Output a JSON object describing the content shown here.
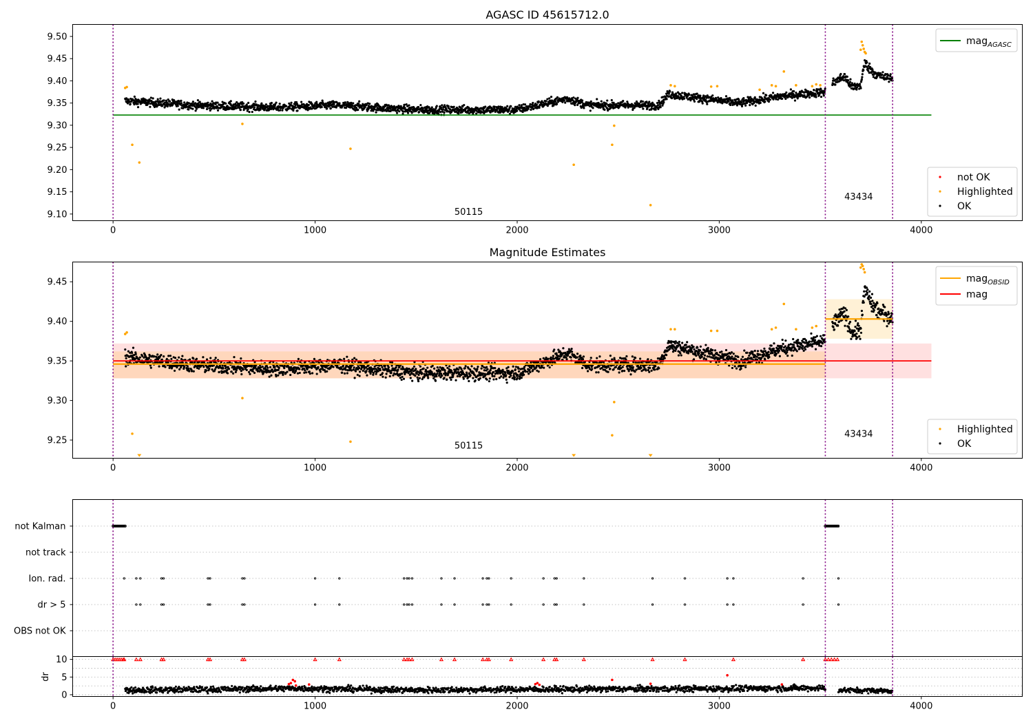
{
  "chart_data": [
    {
      "type": "scatter",
      "title": "AGASC ID 45615712.0",
      "xlim": [
        -200,
        4500
      ],
      "ylim": [
        9.085,
        9.527
      ],
      "xticks": [
        "0",
        "1000",
        "2000",
        "3000",
        "4000"
      ],
      "yticks": [
        "9.10",
        "9.15",
        "9.20",
        "9.25",
        "9.30",
        "9.35",
        "9.40",
        "9.45",
        "9.50"
      ],
      "vlines": [
        0,
        3525,
        3858
      ],
      "obsid_labels": [
        {
          "text": "50115",
          "x": 1760,
          "y": 9.098
        },
        {
          "text": "43434",
          "x": 3690,
          "y": 9.132
        }
      ],
      "mag_agasc": {
        "value": 9.323,
        "x_range": [
          0,
          4050
        ],
        "color": "#008000"
      },
      "legend_upper": [
        {
          "label": "mag",
          "sub": "AGASC",
          "color": "#008000"
        }
      ],
      "legend_lower": [
        {
          "label": "not OK",
          "color": "#ff0000"
        },
        {
          "label": "Highlighted",
          "color": "#ffa500"
        },
        {
          "label": "OK",
          "color": "#000000"
        }
      ],
      "series": [
        {
          "name": "OK",
          "color": "#000000",
          "segments": [
            {
              "x_range": [
                60,
                3525
              ],
              "trend": [
                [
                  60,
                  9.355
                ],
                [
                  400,
                  9.345
                ],
                [
                  800,
                  9.34
                ],
                [
                  1100,
                  9.345
                ],
                [
                  1500,
                  9.335
                ],
                [
                  2000,
                  9.335
                ],
                [
                  2250,
                  9.36
                ],
                [
                  2350,
                  9.345
                ],
                [
                  2700,
                  9.345
                ],
                [
                  2750,
                  9.37
                ],
                [
                  3100,
                  9.35
                ],
                [
                  3300,
                  9.365
                ],
                [
                  3525,
                  9.375
                ]
              ],
              "spread": 0.012
            },
            {
              "x_range": [
                3560,
                3858
              ],
              "trend": [
                [
                  3560,
                  9.395
                ],
                [
                  3620,
                  9.41
                ],
                [
                  3660,
                  9.385
                ],
                [
                  3700,
                  9.39
                ],
                [
                  3720,
                  9.44
                ],
                [
                  3760,
                  9.42
                ],
                [
                  3800,
                  9.41
                ],
                [
                  3858,
                  9.405
                ]
              ],
              "spread": 0.014
            }
          ]
        },
        {
          "name": "Highlighted",
          "color": "#ffa500",
          "points": [
            [
              60,
              9.384
            ],
            [
              68,
              9.386
            ],
            [
              95,
              9.256
            ],
            [
              130,
              9.216
            ],
            [
              640,
              9.303
            ],
            [
              1175,
              9.247
            ],
            [
              2280,
              9.211
            ],
            [
              2470,
              9.256
            ],
            [
              2480,
              9.299
            ],
            [
              2660,
              9.12
            ],
            [
              2760,
              9.39
            ],
            [
              2780,
              9.388
            ],
            [
              2960,
              9.387
            ],
            [
              2990,
              9.388
            ],
            [
              3200,
              9.38
            ],
            [
              3260,
              9.39
            ],
            [
              3280,
              9.388
            ],
            [
              3320,
              9.421
            ],
            [
              3380,
              9.39
            ],
            [
              3460,
              9.388
            ],
            [
              3480,
              9.392
            ],
            [
              3500,
              9.39
            ],
            [
              3700,
              9.47
            ],
            [
              3705,
              9.488
            ],
            [
              3710,
              9.48
            ],
            [
              3715,
              9.472
            ],
            [
              3720,
              9.465
            ],
            [
              3725,
              9.462
            ]
          ]
        }
      ]
    },
    {
      "type": "scatter",
      "title": "Magnitude Estimates",
      "xlim": [
        -200,
        4500
      ],
      "ylim": [
        9.227,
        9.475
      ],
      "xticks": [
        "0",
        "1000",
        "2000",
        "3000",
        "4000"
      ],
      "yticks": [
        "9.25",
        "9.30",
        "9.35",
        "9.40",
        "9.45"
      ],
      "vlines": [
        0,
        3525,
        3858
      ],
      "obsid_labels": [
        {
          "text": "50115",
          "x": 1760,
          "y": 9.239
        },
        {
          "text": "43434",
          "x": 3690,
          "y": 9.254
        }
      ],
      "mag": {
        "value": 9.35,
        "band": [
          9.328,
          9.372
        ],
        "x_range": [
          0,
          4050
        ],
        "color": "#ff0000"
      },
      "mag_obsid": [
        {
          "value": 9.346,
          "band": [
            9.328,
            9.362
          ],
          "x_range": [
            0,
            3525
          ]
        },
        {
          "value": 9.403,
          "band": [
            9.378,
            9.428
          ],
          "x_range": [
            3525,
            3858
          ]
        }
      ],
      "legend_upper": [
        {
          "label": "mag",
          "sub": "OBSID",
          "color": "#ffa500"
        },
        {
          "label": "mag",
          "sub": "",
          "color": "#ff0000"
        }
      ],
      "legend_lower": [
        {
          "label": "Highlighted",
          "color": "#ffa500"
        },
        {
          "label": "OK",
          "color": "#000000"
        }
      ],
      "offscale_markers": [
        130,
        2280,
        2660
      ],
      "series": [
        {
          "name": "OK",
          "color": "#000000",
          "segments": [
            {
              "x_range": [
                60,
                3525
              ],
              "trend": [
                [
                  60,
                  9.355
                ],
                [
                  400,
                  9.345
                ],
                [
                  800,
                  9.34
                ],
                [
                  1100,
                  9.345
                ],
                [
                  1500,
                  9.335
                ],
                [
                  2000,
                  9.335
                ],
                [
                  2250,
                  9.36
                ],
                [
                  2350,
                  9.345
                ],
                [
                  2700,
                  9.345
                ],
                [
                  2750,
                  9.37
                ],
                [
                  3100,
                  9.35
                ],
                [
                  3300,
                  9.365
                ],
                [
                  3525,
                  9.375
                ]
              ],
              "spread": 0.012
            },
            {
              "x_range": [
                3560,
                3858
              ],
              "trend": [
                [
                  3560,
                  9.395
                ],
                [
                  3620,
                  9.41
                ],
                [
                  3660,
                  9.385
                ],
                [
                  3700,
                  9.39
                ],
                [
                  3720,
                  9.44
                ],
                [
                  3760,
                  9.42
                ],
                [
                  3800,
                  9.41
                ],
                [
                  3858,
                  9.405
                ]
              ],
              "spread": 0.014
            }
          ]
        },
        {
          "name": "Highlighted",
          "color": "#ffa500",
          "points": [
            [
              60,
              9.384
            ],
            [
              68,
              9.386
            ],
            [
              95,
              9.258
            ],
            [
              640,
              9.303
            ],
            [
              1175,
              9.248
            ],
            [
              2470,
              9.256
            ],
            [
              2480,
              9.298
            ],
            [
              2760,
              9.39
            ],
            [
              2780,
              9.39
            ],
            [
              2960,
              9.388
            ],
            [
              2990,
              9.388
            ],
            [
              3260,
              9.39
            ],
            [
              3280,
              9.392
            ],
            [
              3320,
              9.422
            ],
            [
              3380,
              9.39
            ],
            [
              3460,
              9.392
            ],
            [
              3480,
              9.394
            ],
            [
              3700,
              9.468
            ],
            [
              3705,
              9.472
            ],
            [
              3710,
              9.47
            ],
            [
              3715,
              9.466
            ],
            [
              3720,
              9.462
            ]
          ]
        }
      ]
    },
    {
      "type": "scatter",
      "title": "",
      "xlim": [
        -200,
        4500
      ],
      "rows": [
        "not Kalman",
        "not track",
        "Ion. rad.",
        "dr > 5",
        "OBS not OK"
      ],
      "not_kalman_ranges": [
        [
          0,
          60
        ],
        [
          3525,
          3590
        ]
      ],
      "event_x": [
        55,
        115,
        135,
        240,
        250,
        470,
        480,
        640,
        650,
        1000,
        1120,
        1440,
        1455,
        1465,
        1480,
        1625,
        1690,
        1830,
        1850,
        1860,
        1970,
        2130,
        2185,
        2195,
        2330,
        2670,
        2830,
        3040,
        3070,
        3415,
        3590
      ],
      "vlines": [
        0,
        3525,
        3858
      ]
    },
    {
      "type": "scatter",
      "title": "",
      "ylabel": "dr",
      "xlim": [
        -200,
        4500
      ],
      "ylim": [
        -0.5,
        10.8
      ],
      "xticks": [
        "0",
        "1000",
        "2000",
        "3000",
        "4000"
      ],
      "yticks": [
        "0",
        "5",
        "10"
      ],
      "capped_value": 10,
      "capped_red_x": [
        0,
        10,
        20,
        30,
        40,
        50,
        55,
        115,
        135,
        240,
        250,
        470,
        480,
        640,
        650,
        1000,
        1120,
        1440,
        1455,
        1465,
        1480,
        1625,
        1690,
        1830,
        1850,
        1860,
        1970,
        2130,
        2185,
        2195,
        2330,
        2670,
        2830,
        3070,
        3415,
        3525,
        3540,
        3555,
        3570,
        3585
      ],
      "outliers_red": [
        [
          870,
          3.0
        ],
        [
          880,
          3.3
        ],
        [
          890,
          4.2
        ],
        [
          900,
          3.8
        ],
        [
          905,
          2.6
        ],
        [
          970,
          2.9
        ],
        [
          2090,
          3.0
        ],
        [
          2100,
          3.3
        ],
        [
          2110,
          2.8
        ],
        [
          2470,
          4.2
        ],
        [
          2660,
          3.1
        ],
        [
          3040,
          5.5
        ],
        [
          3310,
          2.9
        ]
      ],
      "series": [
        {
          "name": "dr",
          "color": "#000000",
          "segments": [
            {
              "x_range": [
                60,
                3525
              ],
              "trend": [
                [
                  60,
                  1.3
                ],
                [
                  500,
                  1.5
                ],
                [
                  900,
                  1.8
                ],
                [
                  1500,
                  1.3
                ],
                [
                  2000,
                  1.5
                ],
                [
                  2500,
                  1.6
                ],
                [
                  3000,
                  1.7
                ],
                [
                  3525,
                  1.9
                ]
              ],
              "spread": 0.6
            },
            {
              "x_range": [
                3590,
                3858
              ],
              "trend": [
                [
                  3590,
                  1.3
                ],
                [
                  3858,
                  1.1
                ]
              ],
              "spread": 0.5
            }
          ]
        }
      ],
      "vlines": [
        0,
        3525,
        3858
      ]
    }
  ]
}
